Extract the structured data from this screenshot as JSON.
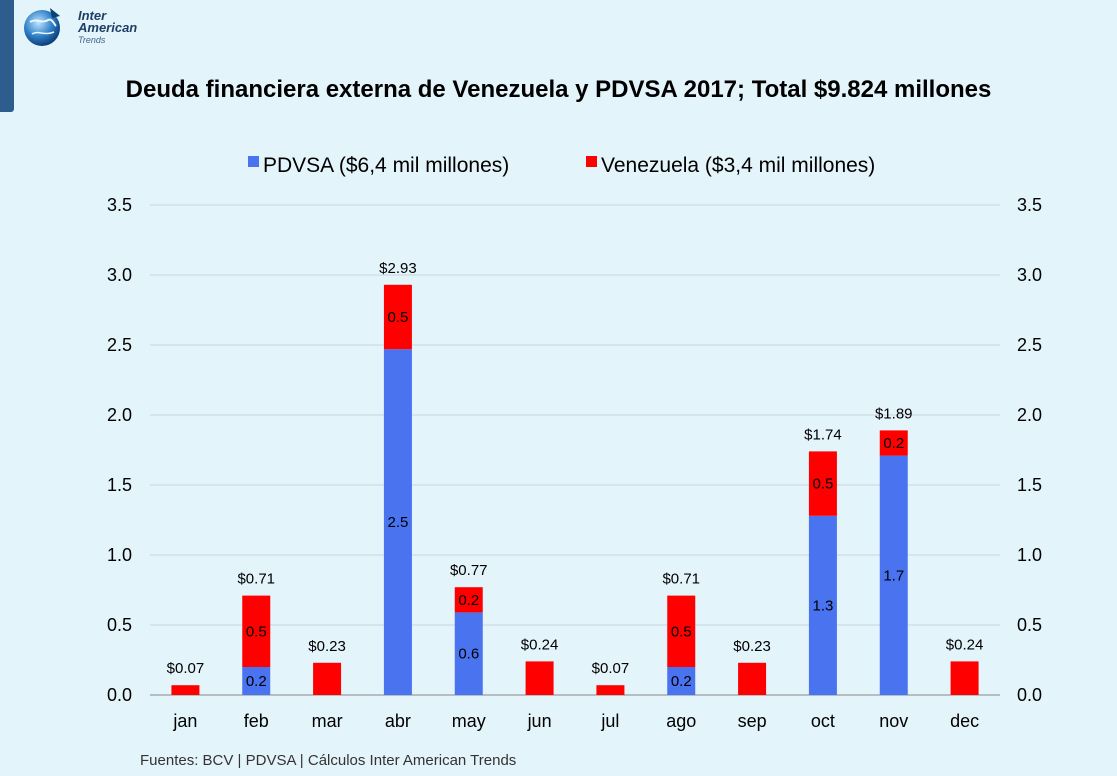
{
  "header": {
    "logo_line1": "Inter",
    "logo_line2": "American",
    "logo_line3": "Trends",
    "logo_icon": "globe-icon"
  },
  "title": "Deuda financiera externa de Venezuela y PDVSA 2017; Total $9.824 millones",
  "source": "Fuentes: BCV | PDVSA | Cálculos  Inter American Trends",
  "colors": {
    "pdvsa": "#4a73f0",
    "venezuela": "#ff0000",
    "background": "#e4f4fb"
  },
  "chart_data": {
    "type": "bar",
    "stacked": true,
    "categories": [
      "jan",
      "feb",
      "mar",
      "abr",
      "may",
      "jun",
      "jul",
      "ago",
      "sep",
      "oct",
      "nov",
      "dec"
    ],
    "series": [
      {
        "name": "PDVSA ($6,4 mil millones)",
        "color": "#4a73f0",
        "values": [
          0,
          0.2,
          0,
          2.47,
          0.59,
          0,
          0,
          0.2,
          0,
          1.28,
          1.71,
          0
        ],
        "labels": [
          "",
          "0.2",
          "",
          "2.5",
          "0.6",
          "",
          "",
          "0.2",
          "",
          "1.3",
          "1.7",
          ""
        ]
      },
      {
        "name": "Venezuela ($3,4 mil millones)",
        "color": "#ff0000",
        "values": [
          0.07,
          0.51,
          0.23,
          0.46,
          0.18,
          0.24,
          0.07,
          0.51,
          0.23,
          0.46,
          0.18,
          0.24
        ],
        "labels": [
          "",
          "0.5",
          "",
          "0.5",
          "0.2",
          "",
          "",
          "0.5",
          "",
          "0.5",
          "0.2",
          ""
        ]
      }
    ],
    "totals": [
      "$0.07",
      "$0.71",
      "$0.23",
      "$2.93",
      "$0.77",
      "$0.24",
      "$0.07",
      "$0.71",
      "$0.23",
      "$1.74",
      "$1.89",
      "$0.24"
    ],
    "yticks": [
      "0.0",
      "0.5",
      "1.0",
      "1.5",
      "2.0",
      "2.5",
      "3.0",
      "3.5"
    ],
    "ylim": [
      0,
      3.5
    ],
    "grid": true,
    "legend": "top-center",
    "secondary_axis": "right, same scale"
  }
}
